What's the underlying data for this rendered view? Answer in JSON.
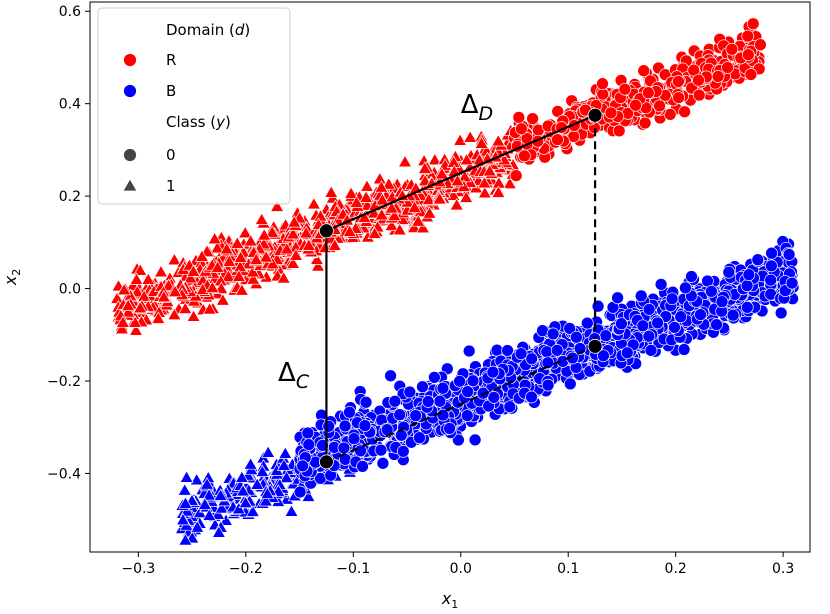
{
  "chart_data": {
    "type": "scatter",
    "title": "",
    "xlabel": "x",
    "xlabel_sub": "1",
    "ylabel": "x",
    "ylabel_sub": "2",
    "xlim": [
      -0.345,
      0.325
    ],
    "ylim": [
      -0.57,
      0.62
    ],
    "xticks": [
      -0.3,
      -0.2,
      -0.1,
      0.0,
      0.1,
      0.2,
      0.3
    ],
    "xtick_labels": [
      "−0.3",
      "−0.2",
      "−0.1",
      "0.0",
      "0.1",
      "0.2",
      "0.3"
    ],
    "yticks": [
      -0.4,
      -0.2,
      0.0,
      0.2,
      0.4,
      0.6
    ],
    "ytick_labels": [
      "−0.4",
      "−0.2",
      "0.0",
      "0.2",
      "0.4",
      "0.6"
    ],
    "grid": false,
    "legend": {
      "placement": "top-left",
      "domain_title": "Domain (d)",
      "domain_title_main": "Domain (",
      "domain_title_var": "d",
      "domain_title_end": ")",
      "domains": [
        {
          "label": "R",
          "color": "#ff0000"
        },
        {
          "label": "B",
          "color": "#0000ff"
        }
      ],
      "class_title": "Class (y)",
      "class_title_main": "Class (",
      "class_title_var": "y",
      "class_title_end": ")",
      "classes": [
        {
          "label": "0",
          "marker": "circle"
        },
        {
          "label": "1",
          "marker": "triangle"
        }
      ]
    },
    "clusters": [
      {
        "domain": "R",
        "class": "1",
        "color": "#ff0000",
        "marker": "triangle",
        "x_range": [
          -0.32,
          0.05
        ],
        "center": [
          -0.125,
          0.125
        ],
        "slope": 0.9,
        "spread": 0.028,
        "count": 900
      },
      {
        "domain": "R",
        "class": "0",
        "color": "#ff0000",
        "marker": "circle",
        "x_range": [
          0.05,
          0.28
        ],
        "center": [
          0.125,
          0.375
        ],
        "slope": 0.9,
        "spread": 0.025,
        "count": 450
      },
      {
        "domain": "B",
        "class": "1",
        "color": "#0000ff",
        "marker": "triangle",
        "x_range": [
          -0.26,
          -0.1
        ],
        "center": [
          -0.125,
          -0.375
        ],
        "slope": 0.9,
        "spread": 0.028,
        "count": 280
      },
      {
        "domain": "B",
        "class": "0",
        "color": "#0000ff",
        "marker": "circle",
        "x_range": [
          -0.15,
          0.31
        ],
        "center": [
          0.125,
          -0.125
        ],
        "slope": 0.9,
        "spread": 0.03,
        "count": 1400
      }
    ],
    "key_points": [
      {
        "x": -0.125,
        "y": 0.125
      },
      {
        "x": 0.125,
        "y": 0.375
      },
      {
        "x": -0.125,
        "y": -0.375
      },
      {
        "x": 0.125,
        "y": -0.125
      }
    ],
    "segments": [
      {
        "from": [
          -0.125,
          0.125
        ],
        "to": [
          0.125,
          0.375
        ],
        "style": "solid"
      },
      {
        "from": [
          -0.125,
          0.125
        ],
        "to": [
          -0.125,
          -0.375
        ],
        "style": "solid"
      },
      {
        "from": [
          0.125,
          0.375
        ],
        "to": [
          0.125,
          -0.125
        ],
        "style": "dashed"
      },
      {
        "from": [
          -0.125,
          -0.375
        ],
        "to": [
          0.125,
          -0.125
        ],
        "style": "dashed"
      }
    ],
    "annotations": [
      {
        "label": "ΔD",
        "base": "Δ",
        "sub": "D",
        "x": 0.0,
        "y": 0.38
      },
      {
        "label": "ΔC",
        "base": "Δ",
        "sub": "C",
        "x": -0.17,
        "y": -0.2
      }
    ]
  }
}
